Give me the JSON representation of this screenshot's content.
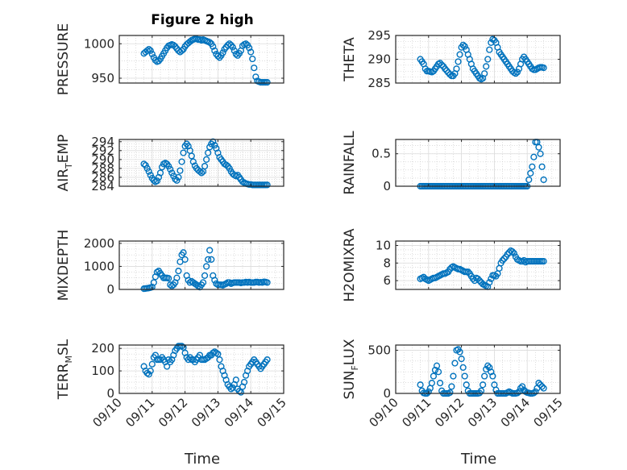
{
  "figure": {
    "title": "Figure 2 high",
    "marker_color": "#0072BD"
  },
  "chart_data": [
    {
      "id": "pressure",
      "type": "scatter",
      "ylabel": "PRESSURE",
      "ylabel_sub": "",
      "yticks": [
        950,
        1000
      ],
      "ylim": [
        943,
        1012
      ],
      "xlim": [
        0,
        5
      ],
      "xticks": [
        "09/10",
        "09/11",
        "09/12",
        "09/13",
        "09/14",
        "09/15"
      ],
      "x": [
        0.75,
        0.8,
        0.85,
        0.9,
        0.95,
        1.0,
        1.05,
        1.1,
        1.15,
        1.2,
        1.25,
        1.3,
        1.35,
        1.4,
        1.45,
        1.5,
        1.55,
        1.6,
        1.65,
        1.7,
        1.75,
        1.8,
        1.85,
        1.9,
        1.95,
        2.0,
        2.05,
        2.1,
        2.15,
        2.2,
        2.25,
        2.3,
        2.35,
        2.4,
        2.45,
        2.5,
        2.55,
        2.6,
        2.65,
        2.7,
        2.75,
        2.8,
        2.85,
        2.9,
        2.95,
        3.0,
        3.05,
        3.1,
        3.15,
        3.2,
        3.25,
        3.3,
        3.35,
        3.4,
        3.45,
        3.5,
        3.55,
        3.6,
        3.65,
        3.7,
        3.75,
        3.8,
        3.85,
        3.9,
        3.95,
        4.0,
        4.05,
        4.1,
        4.15,
        4.2,
        4.25,
        4.3,
        4.35,
        4.4,
        4.45,
        4.5
      ],
      "values": [
        986,
        988,
        990,
        992,
        990,
        985,
        980,
        976,
        974,
        975,
        978,
        982,
        986,
        990,
        994,
        997,
        998,
        999,
        998,
        996,
        993,
        990,
        988,
        990,
        992,
        996,
        999,
        1001,
        1003,
        1005,
        1006,
        1007,
        1007,
        1006,
        1006,
        1005,
        1006,
        1005,
        1004,
        1003,
        1002,
        1000,
        996,
        990,
        985,
        982,
        980,
        983,
        987,
        992,
        995,
        998,
        1000,
        998,
        995,
        990,
        985,
        983,
        986,
        990,
        997,
        999,
        1000,
        998,
        994,
        988,
        978,
        965,
        952,
        946,
        945,
        944,
        944,
        944,
        944,
        944
      ]
    },
    {
      "id": "theta",
      "type": "scatter",
      "ylabel": "THETA",
      "ylabel_sub": "",
      "yticks": [
        285,
        290,
        295
      ],
      "ylim": [
        285,
        295
      ],
      "xlim": [
        0,
        5
      ],
      "xticks": [
        "09/10",
        "09/11",
        "09/12",
        "09/13",
        "09/14",
        "09/15"
      ],
      "x": [
        0.75,
        0.8,
        0.85,
        0.9,
        0.95,
        1.0,
        1.05,
        1.1,
        1.15,
        1.2,
        1.25,
        1.3,
        1.35,
        1.4,
        1.45,
        1.5,
        1.55,
        1.6,
        1.65,
        1.7,
        1.75,
        1.8,
        1.85,
        1.9,
        1.95,
        2.0,
        2.05,
        2.1,
        2.15,
        2.2,
        2.25,
        2.3,
        2.35,
        2.4,
        2.45,
        2.5,
        2.55,
        2.6,
        2.65,
        2.7,
        2.75,
        2.8,
        2.85,
        2.9,
        2.95,
        3.0,
        3.05,
        3.1,
        3.15,
        3.2,
        3.25,
        3.3,
        3.35,
        3.4,
        3.45,
        3.5,
        3.55,
        3.6,
        3.65,
        3.7,
        3.75,
        3.8,
        3.85,
        3.9,
        3.95,
        4.0,
        4.05,
        4.1,
        4.15,
        4.2,
        4.25,
        4.3,
        4.35,
        4.4,
        4.45,
        4.5
      ],
      "values": [
        290,
        289.5,
        289,
        288,
        287.5,
        287.5,
        287.4,
        287.3,
        287.5,
        288,
        288.5,
        289,
        289.2,
        288.8,
        288.5,
        288,
        287.6,
        287.2,
        286.8,
        286.5,
        286.5,
        287,
        288,
        289.5,
        291,
        292.5,
        293,
        292.7,
        292,
        291,
        290,
        289,
        288,
        287.5,
        287,
        286.5,
        286,
        285.8,
        286,
        287,
        288.5,
        290,
        292,
        293.5,
        294.2,
        294,
        293.5,
        292.5,
        291.5,
        291,
        290.5,
        290,
        289.5,
        289,
        288.5,
        288,
        287.5,
        287.2,
        287,
        287.3,
        288,
        289,
        290,
        290.5,
        290,
        289.5,
        289,
        288.5,
        288,
        287.8,
        287.8,
        288,
        288.2,
        288.3,
        288.3,
        288.2
      ]
    },
    {
      "id": "air_temp",
      "type": "scatter",
      "ylabel": "AIR",
      "ylabel_sub": "T",
      "ylabel_suffix": "EMP",
      "yticks": [
        284,
        286,
        288,
        290,
        292,
        294
      ],
      "ylim": [
        284,
        294.5
      ],
      "xlim": [
        0,
        5
      ],
      "xticks": [
        "09/10",
        "09/11",
        "09/12",
        "09/13",
        "09/14",
        "09/15"
      ],
      "x": [
        0.75,
        0.8,
        0.85,
        0.9,
        0.95,
        1.0,
        1.05,
        1.1,
        1.15,
        1.2,
        1.25,
        1.3,
        1.35,
        1.4,
        1.45,
        1.5,
        1.55,
        1.6,
        1.65,
        1.7,
        1.75,
        1.8,
        1.85,
        1.9,
        1.95,
        2.0,
        2.05,
        2.1,
        2.15,
        2.2,
        2.25,
        2.3,
        2.35,
        2.4,
        2.45,
        2.5,
        2.55,
        2.6,
        2.65,
        2.7,
        2.75,
        2.8,
        2.85,
        2.9,
        2.95,
        3.0,
        3.05,
        3.1,
        3.15,
        3.2,
        3.25,
        3.3,
        3.35,
        3.4,
        3.45,
        3.5,
        3.55,
        3.6,
        3.65,
        3.7,
        3.75,
        3.8,
        3.85,
        3.9,
        3.95,
        4.0,
        4.05,
        4.1,
        4.15,
        4.2,
        4.25,
        4.3,
        4.35,
        4.4,
        4.45,
        4.5
      ],
      "values": [
        289,
        288.7,
        288,
        287.3,
        286.5,
        285.8,
        285.3,
        285,
        285.2,
        286,
        287,
        288.3,
        289,
        289.2,
        289,
        288.5,
        287.8,
        287,
        286.3,
        285.6,
        285.3,
        286,
        287.5,
        289.5,
        291.5,
        293,
        293.5,
        293,
        292,
        290.8,
        289.5,
        288.6,
        288,
        287.6,
        287.3,
        287,
        287.3,
        288.5,
        290,
        291.5,
        292.8,
        293.5,
        294,
        293.2,
        292.5,
        291.5,
        290.5,
        290,
        289.5,
        289,
        288.8,
        288.5,
        288,
        287.3,
        286.8,
        286.5,
        286.3,
        286.5,
        286,
        285.5,
        285,
        284.8,
        284.6,
        284.5,
        284.4,
        284.4,
        284.3,
        284.3,
        284.3,
        284.3,
        284.3,
        284.3,
        284.3,
        284.3,
        284.3,
        284.3
      ]
    },
    {
      "id": "rainfall",
      "type": "scatter",
      "ylabel": "RAINFALL",
      "ylabel_sub": "",
      "yticks": [
        0,
        0.5
      ],
      "ytick_labels": [
        "0",
        "0.5"
      ],
      "ylim": [
        0,
        0.72
      ],
      "xlim": [
        0,
        5
      ],
      "xticks": [
        "09/10",
        "09/11",
        "09/12",
        "09/13",
        "09/14",
        "09/15"
      ],
      "x": [
        0.75,
        0.8,
        0.85,
        0.9,
        0.95,
        1.0,
        1.05,
        1.1,
        1.15,
        1.2,
        1.25,
        1.3,
        1.35,
        1.4,
        1.45,
        1.5,
        1.55,
        1.6,
        1.65,
        1.7,
        1.75,
        1.8,
        1.85,
        1.9,
        1.95,
        2.0,
        2.05,
        2.1,
        2.15,
        2.2,
        2.25,
        2.3,
        2.35,
        2.4,
        2.45,
        2.5,
        2.55,
        2.6,
        2.65,
        2.7,
        2.75,
        2.8,
        2.85,
        2.9,
        2.95,
        3.0,
        3.05,
        3.1,
        3.15,
        3.2,
        3.25,
        3.3,
        3.35,
        3.4,
        3.45,
        3.5,
        3.55,
        3.6,
        3.65,
        3.7,
        3.75,
        3.8,
        3.85,
        3.9,
        3.95,
        4.0,
        4.05,
        4.1,
        4.15,
        4.2,
        4.25,
        4.3,
        4.35,
        4.4,
        4.45,
        4.5
      ],
      "values": [
        0,
        0,
        0,
        0,
        0,
        0,
        0,
        0,
        0,
        0,
        0,
        0,
        0,
        0,
        0,
        0,
        0,
        0,
        0,
        0,
        0,
        0,
        0,
        0,
        0,
        0,
        0,
        0,
        0,
        0,
        0,
        0,
        0,
        0,
        0,
        0,
        0,
        0,
        0,
        0,
        0,
        0,
        0,
        0,
        0,
        0,
        0,
        0,
        0,
        0,
        0,
        0,
        0,
        0,
        0,
        0,
        0,
        0,
        0,
        0,
        0,
        0,
        0,
        0,
        0,
        0,
        0.1,
        0.2,
        0.3,
        0.45,
        0.68,
        0.68,
        0.6,
        0.5,
        0.3,
        0.1
      ]
    },
    {
      "id": "mixdepth",
      "type": "scatter",
      "ylabel": "MIXDEPTH",
      "ylabel_sub": "",
      "yticks": [
        0,
        1000,
        2000
      ],
      "ylim": [
        0,
        2100
      ],
      "xlim": [
        0,
        5
      ],
      "xticks": [
        "09/10",
        "09/11",
        "09/12",
        "09/13",
        "09/14",
        "09/15"
      ],
      "x": [
        0.75,
        0.8,
        0.85,
        0.9,
        0.95,
        1.0,
        1.05,
        1.1,
        1.15,
        1.2,
        1.25,
        1.3,
        1.35,
        1.4,
        1.45,
        1.5,
        1.55,
        1.6,
        1.65,
        1.7,
        1.75,
        1.8,
        1.85,
        1.9,
        1.95,
        2.0,
        2.05,
        2.1,
        2.15,
        2.2,
        2.25,
        2.3,
        2.35,
        2.4,
        2.45,
        2.5,
        2.55,
        2.6,
        2.65,
        2.7,
        2.75,
        2.8,
        2.85,
        2.9,
        2.95,
        3.0,
        3.05,
        3.1,
        3.15,
        3.2,
        3.25,
        3.3,
        3.35,
        3.4,
        3.45,
        3.5,
        3.55,
        3.6,
        3.65,
        3.7,
        3.75,
        3.8,
        3.85,
        3.9,
        3.95,
        4.0,
        4.05,
        4.1,
        4.15,
        4.2,
        4.25,
        4.3,
        4.35,
        4.4,
        4.45,
        4.5
      ],
      "values": [
        30,
        40,
        50,
        60,
        80,
        100,
        300,
        550,
        750,
        800,
        700,
        600,
        500,
        500,
        500,
        480,
        200,
        150,
        200,
        300,
        500,
        800,
        1200,
        1500,
        1600,
        1300,
        600,
        400,
        300,
        350,
        300,
        250,
        200,
        150,
        100,
        200,
        300,
        600,
        1000,
        1300,
        1700,
        1300,
        600,
        400,
        250,
        200,
        200,
        200,
        180,
        220,
        250,
        300,
        300,
        250,
        280,
        300,
        300,
        300,
        300,
        280,
        300,
        300,
        320,
        300,
        320,
        300,
        300,
        300,
        320,
        320,
        300,
        310,
        300,
        330,
        320,
        300
      ]
    },
    {
      "id": "h2omixra",
      "type": "scatter",
      "ylabel": "H2OMIXRA",
      "ylabel_sub": "",
      "yticks": [
        6,
        8,
        10
      ],
      "ylim": [
        5,
        10.5
      ],
      "xlim": [
        0,
        5
      ],
      "xticks": [
        "09/10",
        "09/11",
        "09/12",
        "09/13",
        "09/14",
        "09/15"
      ],
      "x": [
        0.75,
        0.8,
        0.85,
        0.9,
        0.95,
        1.0,
        1.05,
        1.1,
        1.15,
        1.2,
        1.25,
        1.3,
        1.35,
        1.4,
        1.45,
        1.5,
        1.55,
        1.6,
        1.65,
        1.7,
        1.75,
        1.8,
        1.85,
        1.9,
        1.95,
        2.0,
        2.05,
        2.1,
        2.15,
        2.2,
        2.25,
        2.3,
        2.35,
        2.4,
        2.45,
        2.5,
        2.55,
        2.6,
        2.65,
        2.7,
        2.75,
        2.8,
        2.85,
        2.9,
        2.95,
        3.0,
        3.05,
        3.1,
        3.15,
        3.2,
        3.25,
        3.3,
        3.35,
        3.4,
        3.45,
        3.5,
        3.55,
        3.6,
        3.65,
        3.7,
        3.75,
        3.8,
        3.85,
        3.9,
        3.95,
        4.0,
        4.05,
        4.1,
        4.15,
        4.2,
        4.25,
        4.3,
        4.35,
        4.4,
        4.45,
        4.5
      ],
      "values": [
        6.2,
        6.3,
        6.4,
        6.2,
        6.1,
        6.0,
        6.1,
        6.2,
        6.3,
        6.3,
        6.4,
        6.5,
        6.6,
        6.7,
        6.8,
        6.8,
        6.9,
        7.0,
        7.3,
        7.5,
        7.6,
        7.5,
        7.4,
        7.3,
        7.3,
        7.2,
        7.1,
        7.0,
        7.0,
        7.0,
        6.8,
        6.5,
        6.2,
        6.0,
        6.3,
        6.2,
        6.0,
        5.8,
        5.6,
        5.5,
        5.4,
        5.3,
        5.8,
        6.2,
        6.6,
        6.6,
        6.5,
        6.8,
        7.4,
        8.0,
        8.3,
        8.5,
        8.7,
        9.0,
        9.2,
        9.4,
        9.3,
        9.1,
        8.7,
        8.4,
        8.3,
        8.2,
        8.2,
        8.3,
        8.1,
        8.2,
        8.2,
        8.2,
        8.2,
        8.2,
        8.2,
        8.2,
        8.2,
        8.2,
        8.2,
        8.2
      ]
    },
    {
      "id": "terr_msl",
      "type": "scatter",
      "ylabel": "TERR",
      "ylabel_sub": "M",
      "ylabel_suffix": "SL",
      "yticks": [
        0,
        100,
        200
      ],
      "ylim": [
        0,
        215
      ],
      "xlim": [
        0,
        5
      ],
      "xticks": [
        "09/10",
        "09/11",
        "09/12",
        "09/13",
        "09/14",
        "09/15"
      ],
      "x": [
        0.75,
        0.8,
        0.85,
        0.9,
        0.95,
        1.0,
        1.05,
        1.1,
        1.15,
        1.2,
        1.25,
        1.3,
        1.35,
        1.4,
        1.45,
        1.5,
        1.55,
        1.6,
        1.65,
        1.7,
        1.75,
        1.8,
        1.85,
        1.9,
        1.95,
        2.0,
        2.05,
        2.1,
        2.15,
        2.2,
        2.25,
        2.3,
        2.35,
        2.4,
        2.45,
        2.5,
        2.55,
        2.6,
        2.65,
        2.7,
        2.75,
        2.8,
        2.85,
        2.9,
        2.95,
        3.0,
        3.05,
        3.1,
        3.15,
        3.2,
        3.25,
        3.3,
        3.35,
        3.4,
        3.45,
        3.5,
        3.55,
        3.6,
        3.65,
        3.7,
        3.75,
        3.8,
        3.85,
        3.9,
        3.95,
        4.0,
        4.05,
        4.1,
        4.15,
        4.2,
        4.25,
        4.3,
        4.35,
        4.4,
        4.45,
        4.5
      ],
      "values": [
        120,
        100,
        90,
        85,
        100,
        130,
        160,
        170,
        150,
        150,
        150,
        160,
        150,
        140,
        120,
        150,
        140,
        150,
        170,
        190,
        200,
        210,
        210,
        210,
        205,
        180,
        160,
        150,
        160,
        150,
        150,
        140,
        150,
        160,
        170,
        150,
        150,
        150,
        155,
        160,
        170,
        170,
        180,
        185,
        180,
        175,
        150,
        120,
        100,
        80,
        60,
        40,
        30,
        20,
        25,
        40,
        60,
        20,
        10,
        5,
        30,
        50,
        80,
        100,
        120,
        130,
        140,
        150,
        140,
        130,
        120,
        110,
        120,
        130,
        140,
        150
      ]
    },
    {
      "id": "sun_flux",
      "type": "scatter",
      "ylabel": "SUN",
      "ylabel_sub": "F",
      "ylabel_suffix": "LUX",
      "yticks": [
        0,
        500
      ],
      "ylim": [
        0,
        560
      ],
      "xlim": [
        0,
        5
      ],
      "xticks": [
        "09/10",
        "09/11",
        "09/12",
        "09/13",
        "09/14",
        "09/15"
      ],
      "x": [
        0.75,
        0.8,
        0.85,
        0.9,
        0.95,
        1.0,
        1.05,
        1.1,
        1.15,
        1.2,
        1.25,
        1.3,
        1.35,
        1.4,
        1.45,
        1.5,
        1.55,
        1.6,
        1.65,
        1.7,
        1.75,
        1.8,
        1.85,
        1.9,
        1.95,
        2.0,
        2.05,
        2.1,
        2.15,
        2.2,
        2.25,
        2.3,
        2.35,
        2.4,
        2.45,
        2.5,
        2.55,
        2.6,
        2.65,
        2.7,
        2.75,
        2.8,
        2.85,
        2.9,
        2.95,
        3.0,
        3.05,
        3.1,
        3.15,
        3.2,
        3.25,
        3.3,
        3.35,
        3.4,
        3.45,
        3.5,
        3.55,
        3.6,
        3.65,
        3.7,
        3.75,
        3.8,
        3.85,
        3.9,
        3.95,
        4.0,
        4.05,
        4.1,
        4.15,
        4.2,
        4.25,
        4.3,
        4.35,
        4.4,
        4.45,
        4.5
      ],
      "values": [
        100,
        30,
        5,
        0,
        0,
        20,
        60,
        120,
        200,
        270,
        320,
        250,
        120,
        30,
        0,
        0,
        0,
        0,
        10,
        80,
        200,
        350,
        500,
        510,
        480,
        400,
        300,
        200,
        100,
        30,
        0,
        0,
        0,
        0,
        0,
        0,
        5,
        30,
        100,
        200,
        280,
        320,
        300,
        250,
        200,
        100,
        40,
        0,
        0,
        0,
        0,
        0,
        0,
        10,
        20,
        10,
        0,
        0,
        0,
        5,
        20,
        60,
        80,
        40,
        20,
        10,
        5,
        0,
        0,
        5,
        20,
        60,
        120,
        100,
        80,
        60
      ]
    }
  ]
}
